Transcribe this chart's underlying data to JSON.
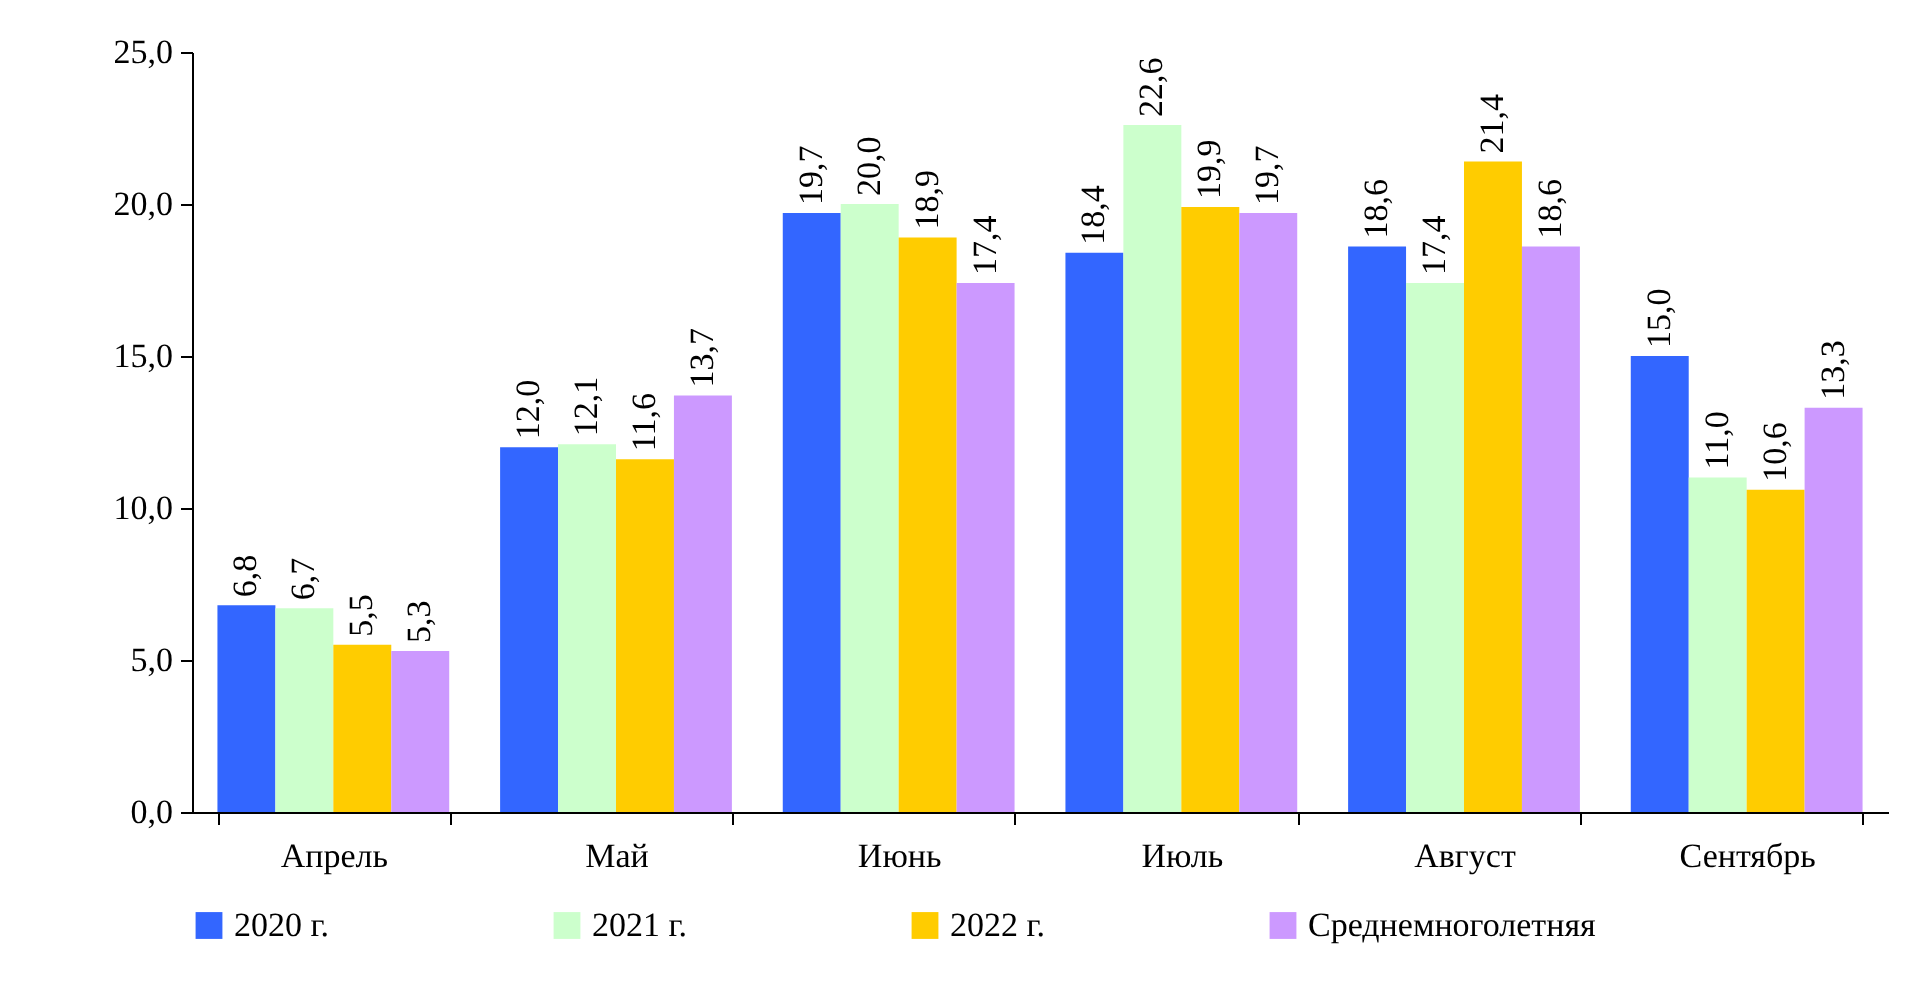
{
  "chart_data": {
    "type": "bar",
    "categories": [
      "Апрель",
      "Май",
      "Июнь",
      "Июль",
      "Август",
      "Сентябрь"
    ],
    "series": [
      {
        "name": "2020 г.",
        "color": "#3366ff",
        "values": [
          6.8,
          12.0,
          19.7,
          18.4,
          18.6,
          15.0
        ],
        "value_labels": [
          "6,8",
          "12,0",
          "19,7",
          "18,4",
          "18,6",
          "15,0"
        ]
      },
      {
        "name": "2021 г.",
        "color": "#ccffcc",
        "values": [
          6.7,
          12.1,
          20.0,
          22.6,
          17.4,
          11.0
        ],
        "value_labels": [
          "6,7",
          "12,1",
          "20,0",
          "22,6",
          "17,4",
          "11,0"
        ]
      },
      {
        "name": "2022 г.",
        "color": "#ffcc00",
        "values": [
          5.5,
          11.6,
          18.9,
          19.9,
          21.4,
          10.6
        ],
        "value_labels": [
          "5,5",
          "11,6",
          "18,9",
          "19,9",
          "21,4",
          "10,6"
        ]
      },
      {
        "name": "Среднемноголетняя",
        "color": "#cc99ff",
        "values": [
          5.3,
          13.7,
          17.4,
          19.7,
          18.6,
          13.3
        ],
        "value_labels": [
          "5,3",
          "13,7",
          "17,4",
          "19,7",
          "18,6",
          "13,3"
        ]
      }
    ],
    "ylim": [
      0,
      25
    ],
    "yticks": [
      {
        "value": 0,
        "label": "0,0"
      },
      {
        "value": 5,
        "label": "5,0"
      },
      {
        "value": 10,
        "label": "10,0"
      },
      {
        "value": 15,
        "label": "15,0"
      },
      {
        "value": 20,
        "label": "20,0"
      },
      {
        "value": 25,
        "label": "25,0"
      }
    ],
    "grid": false,
    "legend": "bottom"
  }
}
